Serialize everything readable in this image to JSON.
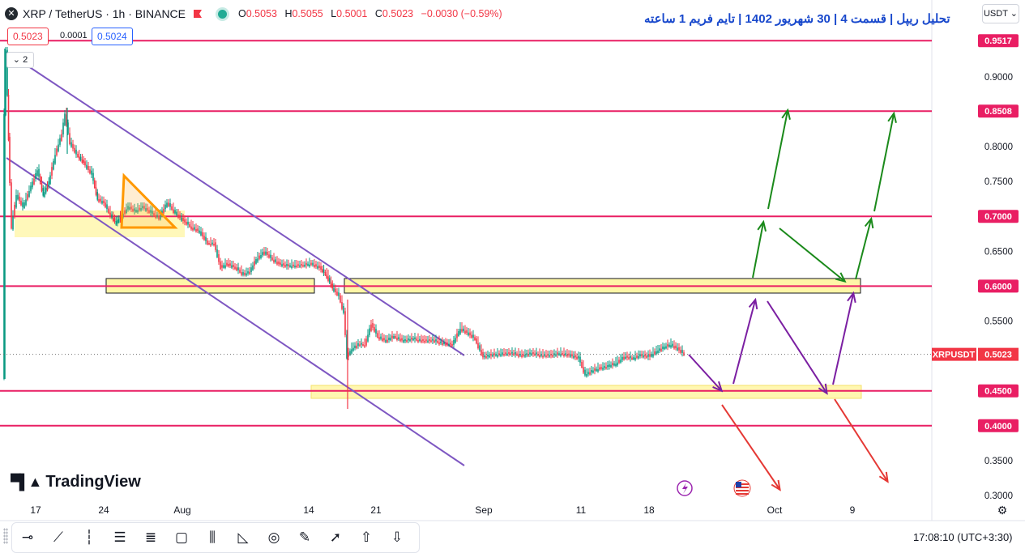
{
  "header": {
    "symbol": "XRP / TetherUS · 1h · BINANCE",
    "open_label": "O",
    "open": "0.5053",
    "high_label": "H",
    "high": "0.5055",
    "low_label": "L",
    "low": "0.5001",
    "close_label": "C",
    "close": "0.5023",
    "change": "−0.0030 (−0.59%)"
  },
  "trade": {
    "sell": "0.5023",
    "spread": "0.0001",
    "buy": "0.5024"
  },
  "indicators_collapse": "2",
  "title": "تحلیل ریپل | قسمت 4 | 30 شهریور 1402 | تایم فریم 1 ساعته",
  "currency": "USDT",
  "logo": "TradingView",
  "time": "17:08:10",
  "timezone": "(UTC+3:30)",
  "icons": [
    "xrp-icon",
    "red-flag-icon",
    "market-open-icon",
    "chevron-down-icon",
    "horizontal-line-icon",
    "trend-line-icon",
    "vertical-line-icon",
    "channel-icon",
    "fib-icon",
    "rectangle-icon",
    "pitchfork-icon",
    "triangle-icon",
    "circle-icon",
    "brush-icon",
    "arrow-icon",
    "up-arrow-icon",
    "down-arrow-icon",
    "settings-icon",
    "lightning-icon",
    "us-flag-icon"
  ],
  "chart_data": {
    "type": "candlestick",
    "symbol": "XRPUSDT",
    "ylim": [
      0.295,
      0.965
    ],
    "y_ticks": [
      "0.9000",
      "0.8500",
      "0.8000",
      "0.7500",
      "0.7000",
      "0.6500",
      "0.6000",
      "0.5500",
      "0.5000",
      "0.4500",
      "0.4000",
      "0.3500",
      "0.3000"
    ],
    "x_ticks": [
      "17",
      "24",
      "Aug",
      "14",
      "21",
      "Sep",
      "11",
      "18",
      "Oct",
      "9"
    ],
    "levels": [
      {
        "value": 0.9517,
        "label": "0.9517"
      },
      {
        "value": 0.8508,
        "label": "0.8508"
      },
      {
        "value": 0.7,
        "label": "0.7000"
      },
      {
        "value": 0.6,
        "label": "0.6000"
      },
      {
        "value": 0.45,
        "label": "0.4500"
      },
      {
        "value": 0.4,
        "label": "0.4000"
      }
    ],
    "last_price": {
      "value": 0.5023,
      "label": "0.5023",
      "symbol_label": "XRPUSDT"
    },
    "colors": {
      "level": "#e91e63",
      "up": "#089981",
      "down": "#f23645",
      "channel": "#7e57c2",
      "zone": "#fff176"
    }
  }
}
